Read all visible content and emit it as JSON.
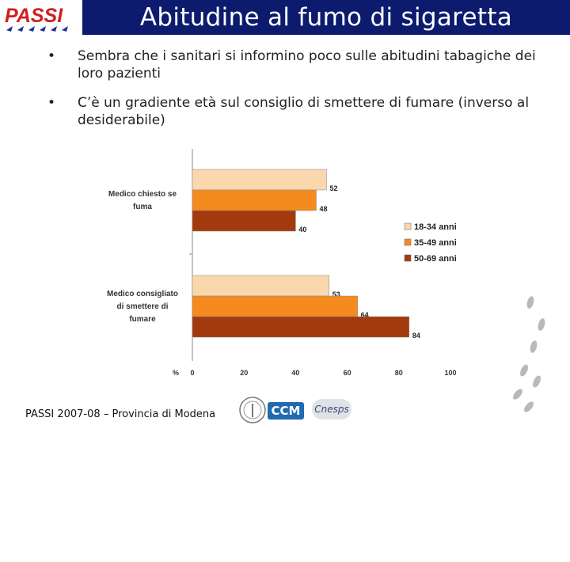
{
  "header": {
    "logo_text": "PASSI",
    "title": "Abitudine al fumo di sigaretta"
  },
  "bullets": [
    "Sembra che i sanitari si informino poco sulle abitudini tabagiche dei loro pazienti",
    "C’è un gradiente età sul consiglio di smettere di fumare (inverso al desiderabile)"
  ],
  "chart_data": {
    "type": "bar",
    "orientation": "horizontal",
    "categories": [
      "Medico chiesto se fuma",
      "Medico consigliato di smettere di fumare"
    ],
    "category_label_lines": [
      [
        "Medico chiesto se",
        "fuma"
      ],
      [
        "Medico consigliato",
        "di smettere di",
        "fumare"
      ]
    ],
    "series": [
      {
        "name": "18-34 anni",
        "values": [
          52,
          53
        ],
        "color": "#fad7ad"
      },
      {
        "name": "35-49 anni",
        "values": [
          48,
          64
        ],
        "color": "#f58a1f"
      },
      {
        "name": "50-69 anni",
        "values": [
          40,
          84
        ],
        "color": "#a33a0e"
      }
    ],
    "data_labels": [
      [
        "52",
        "48",
        "40"
      ],
      [
        "53",
        "64",
        "84"
      ]
    ],
    "xlabel": "%",
    "xlim": [
      0,
      100
    ],
    "xticks": [
      "0",
      "20",
      "40",
      "60",
      "80",
      "100"
    ],
    "grid": false,
    "legend": "right"
  },
  "footer": {
    "text": "PASSI 2007-08 – Provincia di Modena",
    "partner_logos": [
      "CCM",
      "Cnesps"
    ]
  },
  "colors": {
    "title_bar": "#0d1b6e",
    "title_text": "#ffffff",
    "logo_red": "#d11f1f",
    "logo_blue": "#1f2f8c",
    "footprints": "#b9b9b9"
  }
}
